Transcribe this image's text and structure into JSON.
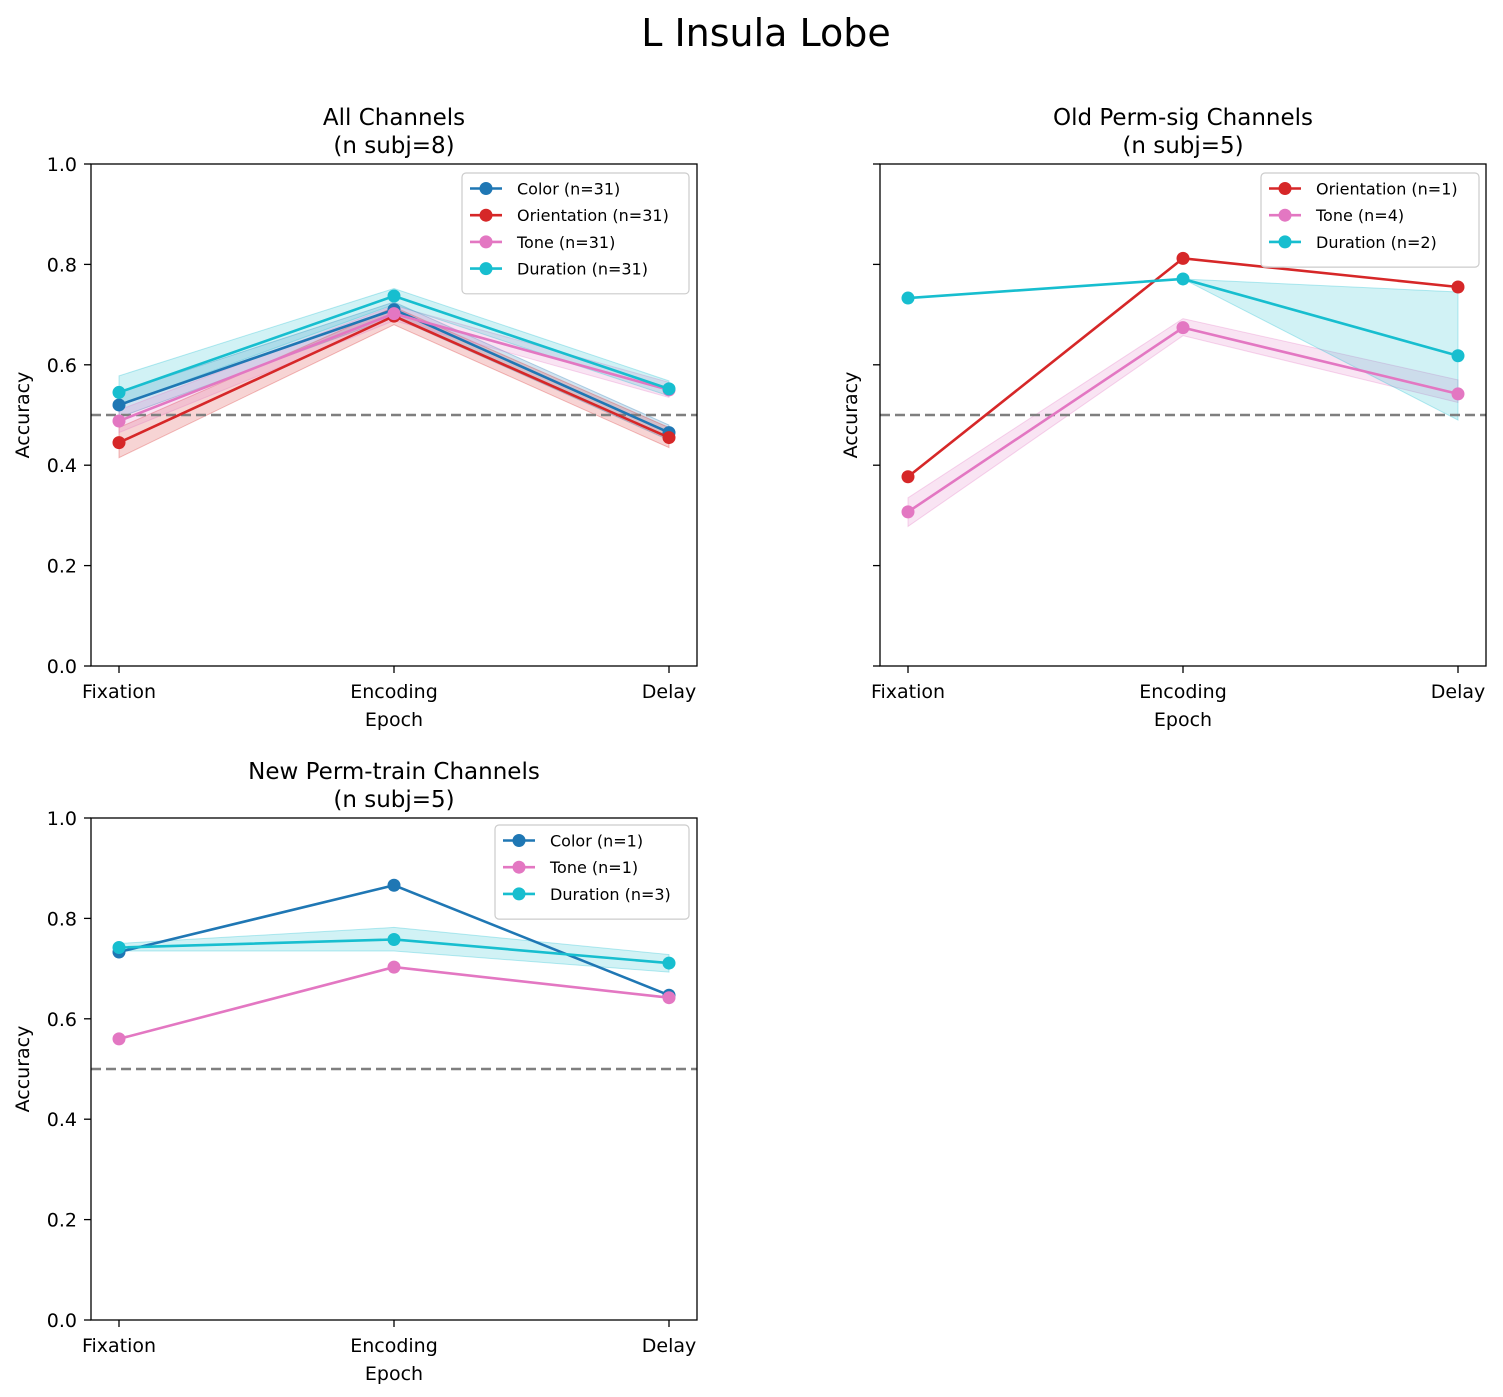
{
  "figure": {
    "title": "L Insula Lobe"
  },
  "colors": {
    "color": "#1f77b4",
    "orientation": "#d62728",
    "tone": "#e377c2",
    "duration": "#17becf",
    "chance_line": "#7f7f7f"
  },
  "chart_data": [
    {
      "type": "line",
      "title": "All Channels",
      "subtitle": "(n subj=8)",
      "xlabel": "Epoch",
      "ylabel": "Accuracy",
      "categories": [
        "Fixation",
        "Encoding",
        "Delay"
      ],
      "ylim": [
        0,
        1
      ],
      "yticks": [
        "0.0",
        "0.2",
        "0.4",
        "0.6",
        "0.8",
        "1.0"
      ],
      "show_ytick_labels": true,
      "chance_level": 0.5,
      "legend_position": "top-right",
      "series": [
        {
          "name": "Color (n=31)",
          "color_key": "color",
          "values": [
            0.52,
            0.71,
            0.465
          ],
          "ci_low": [
            0.495,
            0.695,
            0.45
          ],
          "ci_high": [
            0.545,
            0.725,
            0.48
          ]
        },
        {
          "name": "Orientation (n=31)",
          "color_key": "orientation",
          "values": [
            0.445,
            0.697,
            0.455
          ],
          "ci_low": [
            0.415,
            0.68,
            0.435
          ],
          "ci_high": [
            0.475,
            0.715,
            0.475
          ]
        },
        {
          "name": "Tone (n=31)",
          "color_key": "tone",
          "values": [
            0.488,
            0.702,
            0.55
          ],
          "ci_low": [
            0.465,
            0.688,
            0.535
          ],
          "ci_high": [
            0.51,
            0.718,
            0.565
          ]
        },
        {
          "name": "Duration (n=31)",
          "color_key": "duration",
          "values": [
            0.545,
            0.737,
            0.552
          ],
          "ci_low": [
            0.52,
            0.72,
            0.538
          ],
          "ci_high": [
            0.578,
            0.752,
            0.568
          ]
        }
      ]
    },
    {
      "type": "line",
      "title": "Old Perm-sig Channels",
      "subtitle": "(n subj=5)",
      "xlabel": "Epoch",
      "ylabel": "Accuracy",
      "categories": [
        "Fixation",
        "Encoding",
        "Delay"
      ],
      "ylim": [
        0,
        1
      ],
      "yticks": [
        "0.0",
        "0.2",
        "0.4",
        "0.6",
        "0.8",
        "1.0"
      ],
      "show_ytick_labels": false,
      "chance_level": 0.5,
      "legend_position": "top-right",
      "series": [
        {
          "name": "Orientation (n=1)",
          "color_key": "orientation",
          "values": [
            0.377,
            0.812,
            0.755
          ]
        },
        {
          "name": "Tone (n=4)",
          "color_key": "tone",
          "values": [
            0.307,
            0.674,
            0.542
          ],
          "ci_low": [
            0.278,
            0.658,
            0.525
          ],
          "ci_high": [
            0.335,
            0.692,
            0.57
          ]
        },
        {
          "name": "Duration (n=2)",
          "color_key": "duration",
          "values": [
            0.733,
            0.771,
            0.618
          ],
          "ci_low": [
            0.733,
            0.771,
            0.49
          ],
          "ci_high": [
            0.733,
            0.771,
            0.745
          ]
        }
      ]
    },
    {
      "type": "line",
      "title": "New Perm-train Channels",
      "subtitle": "(n subj=5)",
      "xlabel": "Epoch",
      "ylabel": "Accuracy",
      "categories": [
        "Fixation",
        "Encoding",
        "Delay"
      ],
      "ylim": [
        0,
        1
      ],
      "yticks": [
        "0.0",
        "0.2",
        "0.4",
        "0.6",
        "0.8",
        "1.0"
      ],
      "show_ytick_labels": true,
      "chance_level": 0.5,
      "legend_position": "top-right",
      "series": [
        {
          "name": "Color (n=1)",
          "color_key": "color",
          "values": [
            0.733,
            0.866,
            0.647
          ]
        },
        {
          "name": "Tone (n=1)",
          "color_key": "tone",
          "values": [
            0.56,
            0.703,
            0.642
          ]
        },
        {
          "name": "Duration (n=3)",
          "color_key": "duration",
          "values": [
            0.742,
            0.758,
            0.711
          ],
          "ci_low": [
            0.735,
            0.735,
            0.693
          ],
          "ci_high": [
            0.75,
            0.782,
            0.728
          ]
        }
      ]
    }
  ]
}
